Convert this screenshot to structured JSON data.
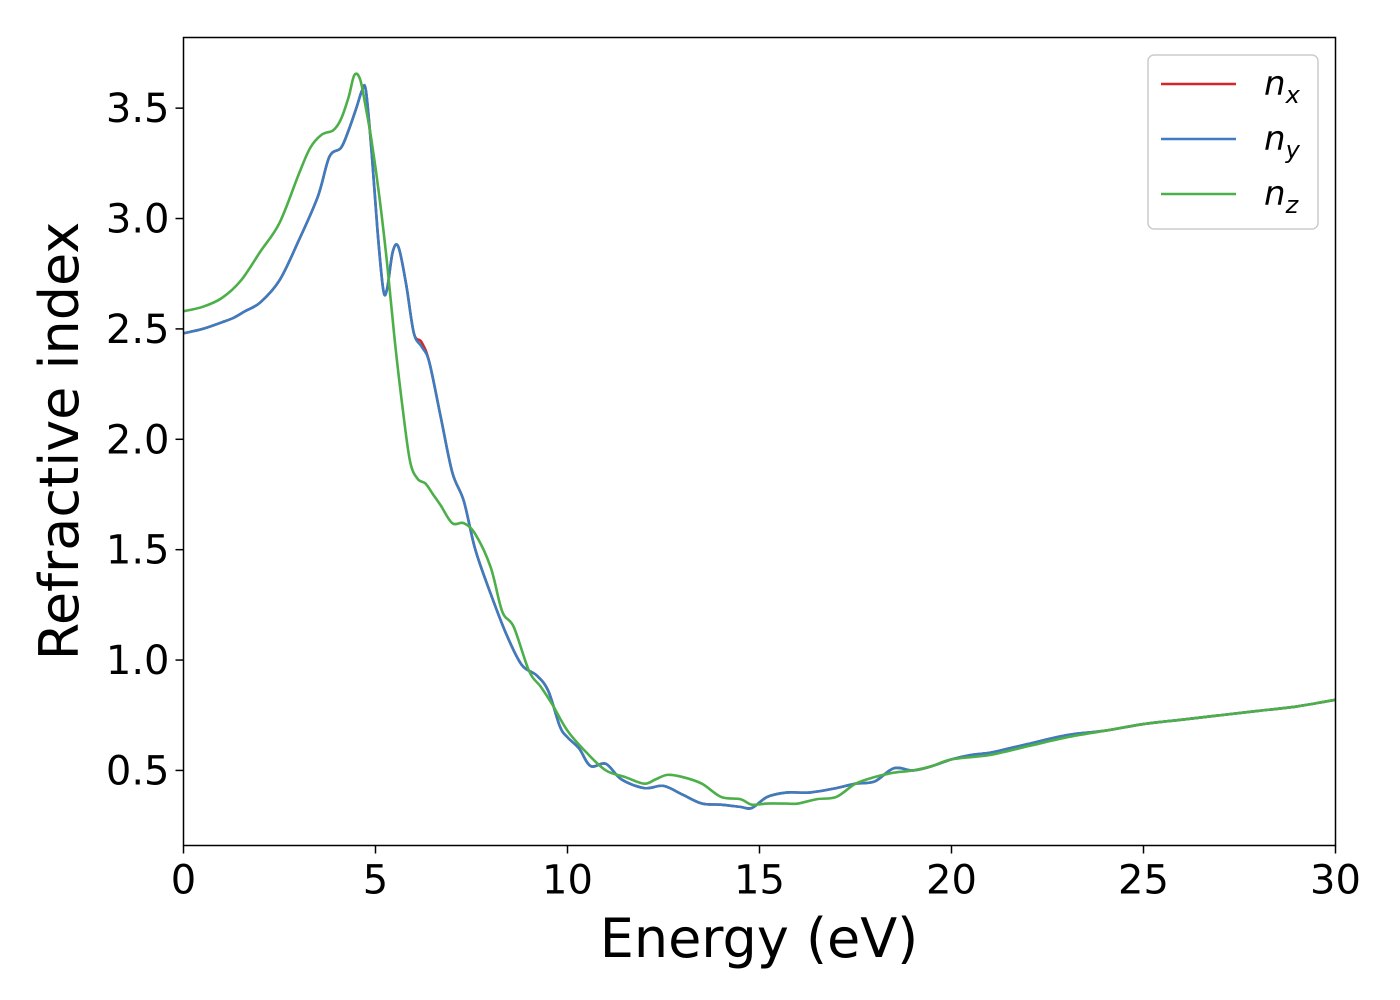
{
  "chart_data": {
    "type": "line",
    "title": "",
    "xlabel": "Energy (eV)",
    "ylabel": "Refractive index",
    "xlim": [
      0,
      30
    ],
    "ylim": [
      0.16,
      3.82
    ],
    "xticks": [
      0,
      5,
      10,
      15,
      20,
      25,
      30
    ],
    "yticks": [
      0.5,
      1.0,
      1.5,
      2.0,
      2.5,
      3.0,
      3.5
    ],
    "xtick_labels": [
      "0",
      "5",
      "10",
      "15",
      "20",
      "25",
      "30"
    ],
    "ytick_labels": [
      "0.5",
      "1.0",
      "1.5",
      "2.0",
      "2.5",
      "3.0",
      "3.5"
    ],
    "grid": false,
    "legend_position": "top-right",
    "colors": {
      "nx": "#d62728",
      "ny": "#3b7dc0",
      "nz": "#4daf4a"
    },
    "legend": [
      {
        "base": "n",
        "sub": "x"
      },
      {
        "base": "n",
        "sub": "y"
      },
      {
        "base": "n",
        "sub": "z"
      }
    ],
    "series": [
      {
        "key": "nx",
        "x": [
          0,
          0.5,
          1,
          1.3,
          1.6,
          2,
          2.5,
          3,
          3.5,
          3.8,
          4.1,
          4.3,
          4.5,
          4.65,
          4.75,
          4.9,
          5.05,
          5.2,
          5.3,
          5.45,
          5.6,
          5.8,
          6,
          6.2,
          6.4,
          6.7,
          7,
          7.3,
          7.6,
          8,
          8.4,
          8.8,
          9.2,
          9.5,
          9.8,
          10,
          10.3,
          10.6,
          11,
          11.4,
          12,
          12.5,
          13,
          13.5,
          14,
          14.5,
          14.8,
          15.2,
          15.7,
          16.3,
          17,
          17.5,
          18,
          18.5,
          19,
          19.5,
          20,
          20.5,
          21,
          21.5,
          22,
          23,
          24,
          25,
          26,
          27,
          28,
          29,
          30
        ],
        "y": [
          2.48,
          2.5,
          2.53,
          2.55,
          2.58,
          2.62,
          2.72,
          2.9,
          3.1,
          3.28,
          3.32,
          3.4,
          3.5,
          3.58,
          3.58,
          3.3,
          2.95,
          2.68,
          2.68,
          2.85,
          2.87,
          2.7,
          2.48,
          2.44,
          2.35,
          2.1,
          1.85,
          1.72,
          1.5,
          1.3,
          1.12,
          0.98,
          0.93,
          0.86,
          0.7,
          0.65,
          0.6,
          0.52,
          0.53,
          0.46,
          0.42,
          0.43,
          0.39,
          0.35,
          0.345,
          0.335,
          0.33,
          0.38,
          0.4,
          0.4,
          0.42,
          0.44,
          0.45,
          0.51,
          0.5,
          0.52,
          0.55,
          0.57,
          0.58,
          0.6,
          0.62,
          0.66,
          0.68,
          0.71,
          0.73,
          0.75,
          0.77,
          0.79,
          0.82
        ]
      },
      {
        "key": "ny",
        "x": [
          0,
          0.5,
          1,
          1.3,
          1.6,
          2,
          2.5,
          3,
          3.5,
          3.8,
          4.1,
          4.3,
          4.5,
          4.65,
          4.75,
          4.9,
          5.05,
          5.2,
          5.3,
          5.45,
          5.6,
          5.8,
          6,
          6.2,
          6.4,
          6.7,
          7,
          7.3,
          7.6,
          8,
          8.4,
          8.8,
          9.2,
          9.5,
          9.8,
          10,
          10.3,
          10.6,
          11,
          11.4,
          12,
          12.5,
          13,
          13.5,
          14,
          14.5,
          14.8,
          15.2,
          15.7,
          16.3,
          17,
          17.5,
          18,
          18.5,
          19,
          19.5,
          20,
          20.5,
          21,
          21.5,
          22,
          23,
          24,
          25,
          26,
          27,
          28,
          29,
          30
        ],
        "y": [
          2.48,
          2.5,
          2.53,
          2.55,
          2.58,
          2.62,
          2.72,
          2.9,
          3.1,
          3.28,
          3.32,
          3.4,
          3.5,
          3.58,
          3.58,
          3.3,
          2.95,
          2.68,
          2.68,
          2.85,
          2.87,
          2.7,
          2.48,
          2.42,
          2.35,
          2.1,
          1.85,
          1.72,
          1.5,
          1.3,
          1.12,
          0.98,
          0.93,
          0.86,
          0.7,
          0.65,
          0.6,
          0.52,
          0.53,
          0.46,
          0.42,
          0.43,
          0.39,
          0.35,
          0.345,
          0.335,
          0.33,
          0.38,
          0.4,
          0.4,
          0.42,
          0.44,
          0.45,
          0.51,
          0.5,
          0.52,
          0.55,
          0.57,
          0.58,
          0.6,
          0.62,
          0.66,
          0.68,
          0.71,
          0.73,
          0.75,
          0.77,
          0.79,
          0.82
        ]
      },
      {
        "key": "nz",
        "x": [
          0,
          0.5,
          1,
          1.5,
          2,
          2.5,
          3,
          3.3,
          3.6,
          3.9,
          4.1,
          4.3,
          4.45,
          4.6,
          4.75,
          4.9,
          5.1,
          5.3,
          5.5,
          5.7,
          5.9,
          6.1,
          6.3,
          6.5,
          6.7,
          7,
          7.3,
          7.6,
          8,
          8.3,
          8.6,
          9,
          9.3,
          9.6,
          10,
          10.5,
          11,
          11.5,
          12,
          12.3,
          12.6,
          13,
          13.5,
          14,
          14.5,
          14.8,
          15.2,
          15.7,
          16,
          16.5,
          17,
          17.5,
          18,
          18.5,
          19,
          19.5,
          20,
          21,
          22,
          23,
          24,
          25,
          26,
          27,
          28,
          29,
          30
        ],
        "y": [
          2.58,
          2.6,
          2.64,
          2.72,
          2.85,
          2.98,
          3.2,
          3.32,
          3.38,
          3.4,
          3.45,
          3.55,
          3.65,
          3.63,
          3.5,
          3.35,
          3.1,
          2.8,
          2.45,
          2.15,
          1.9,
          1.82,
          1.8,
          1.75,
          1.7,
          1.62,
          1.62,
          1.57,
          1.42,
          1.22,
          1.15,
          0.95,
          0.88,
          0.8,
          0.68,
          0.58,
          0.5,
          0.47,
          0.44,
          0.46,
          0.48,
          0.47,
          0.44,
          0.38,
          0.37,
          0.345,
          0.35,
          0.35,
          0.35,
          0.37,
          0.38,
          0.44,
          0.47,
          0.49,
          0.5,
          0.52,
          0.55,
          0.57,
          0.61,
          0.65,
          0.68,
          0.71,
          0.73,
          0.75,
          0.77,
          0.79,
          0.82
        ]
      }
    ]
  }
}
